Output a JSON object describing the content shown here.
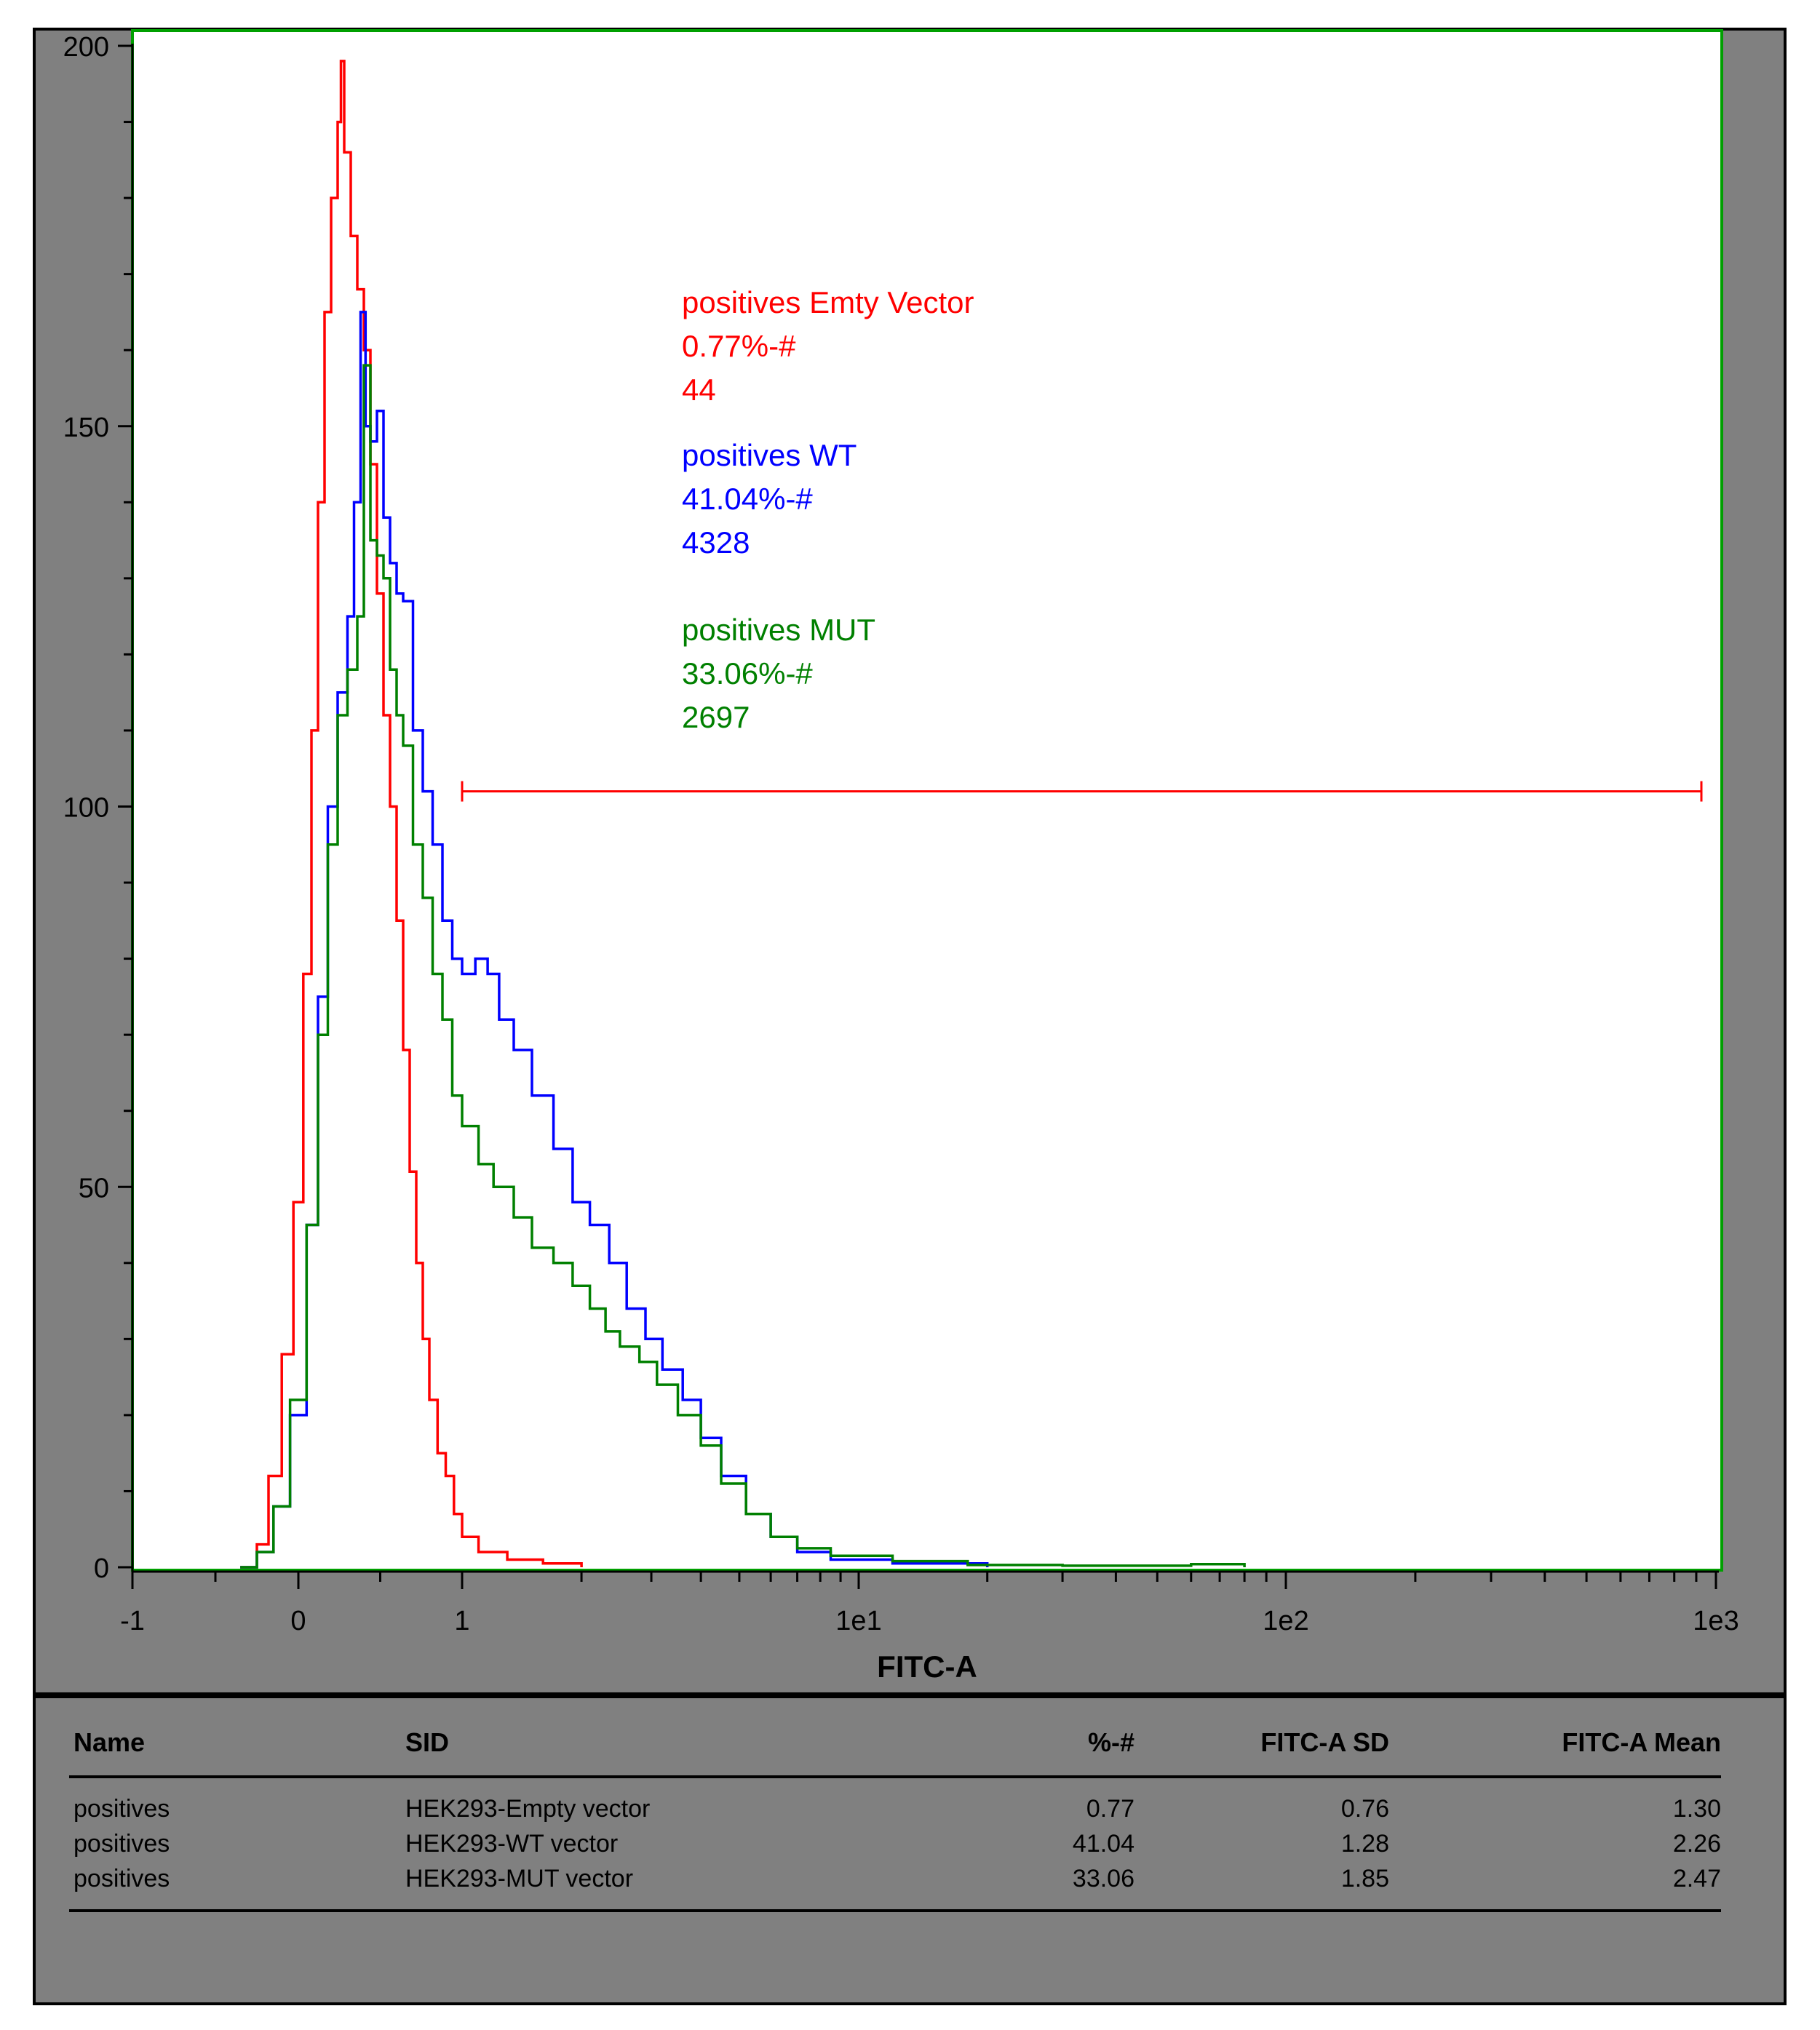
{
  "chart_data": {
    "type": "histogram",
    "title": "",
    "xlabel": "FITC-A",
    "ylabel": "",
    "x_tick_labels": [
      "-1",
      "0",
      "1",
      "1e1",
      "1e2",
      "1e3"
    ],
    "y_ticks": [
      0,
      50,
      100,
      150,
      200
    ],
    "ylim": [
      0,
      200
    ],
    "series": [
      {
        "name": "Empty Vector",
        "color": "#ff0000",
        "points": [
          [
            -0.35,
            0
          ],
          [
            -0.25,
            3
          ],
          [
            -0.18,
            12
          ],
          [
            -0.1,
            28
          ],
          [
            -0.03,
            48
          ],
          [
            0.03,
            78
          ],
          [
            0.08,
            110
          ],
          [
            0.12,
            140
          ],
          [
            0.16,
            165
          ],
          [
            0.2,
            180
          ],
          [
            0.24,
            190
          ],
          [
            0.26,
            198
          ],
          [
            0.28,
            186
          ],
          [
            0.32,
            175
          ],
          [
            0.36,
            168
          ],
          [
            0.4,
            160
          ],
          [
            0.44,
            145
          ],
          [
            0.48,
            128
          ],
          [
            0.52,
            112
          ],
          [
            0.56,
            100
          ],
          [
            0.6,
            85
          ],
          [
            0.64,
            68
          ],
          [
            0.68,
            52
          ],
          [
            0.72,
            40
          ],
          [
            0.76,
            30
          ],
          [
            0.8,
            22
          ],
          [
            0.85,
            15
          ],
          [
            0.9,
            12
          ],
          [
            0.95,
            7
          ],
          [
            1.0,
            4
          ],
          [
            1.1,
            2
          ],
          [
            1.3,
            1
          ],
          [
            1.6,
            0.5
          ],
          [
            2.0,
            0
          ]
        ]
      },
      {
        "name": "WT",
        "color": "#0000ff",
        "points": [
          [
            -0.35,
            0
          ],
          [
            -0.25,
            2
          ],
          [
            -0.15,
            8
          ],
          [
            -0.05,
            20
          ],
          [
            0.05,
            45
          ],
          [
            0.12,
            75
          ],
          [
            0.18,
            100
          ],
          [
            0.24,
            115
          ],
          [
            0.3,
            125
          ],
          [
            0.34,
            140
          ],
          [
            0.38,
            165
          ],
          [
            0.41,
            150
          ],
          [
            0.44,
            148
          ],
          [
            0.48,
            152
          ],
          [
            0.52,
            138
          ],
          [
            0.56,
            132
          ],
          [
            0.6,
            128
          ],
          [
            0.64,
            127
          ],
          [
            0.7,
            110
          ],
          [
            0.76,
            102
          ],
          [
            0.82,
            95
          ],
          [
            0.88,
            85
          ],
          [
            0.94,
            80
          ],
          [
            1.0,
            78
          ],
          [
            1.08,
            80
          ],
          [
            1.16,
            78
          ],
          [
            1.24,
            72
          ],
          [
            1.35,
            68
          ],
          [
            1.5,
            62
          ],
          [
            1.7,
            55
          ],
          [
            1.9,
            48
          ],
          [
            2.1,
            45
          ],
          [
            2.35,
            40
          ],
          [
            2.6,
            34
          ],
          [
            2.9,
            30
          ],
          [
            3.2,
            26
          ],
          [
            3.6,
            22
          ],
          [
            4.0,
            17
          ],
          [
            4.5,
            12
          ],
          [
            5.2,
            7
          ],
          [
            6.0,
            4
          ],
          [
            7.0,
            2
          ],
          [
            8.5,
            1
          ],
          [
            12,
            0.5
          ],
          [
            20,
            0
          ]
        ]
      },
      {
        "name": "MUT",
        "color": "#008000",
        "points": [
          [
            -0.35,
            0
          ],
          [
            -0.25,
            2
          ],
          [
            -0.15,
            8
          ],
          [
            -0.05,
            22
          ],
          [
            0.05,
            45
          ],
          [
            0.12,
            70
          ],
          [
            0.18,
            95
          ],
          [
            0.24,
            112
          ],
          [
            0.3,
            118
          ],
          [
            0.36,
            125
          ],
          [
            0.4,
            158
          ],
          [
            0.44,
            135
          ],
          [
            0.48,
            133
          ],
          [
            0.52,
            130
          ],
          [
            0.56,
            118
          ],
          [
            0.6,
            112
          ],
          [
            0.64,
            108
          ],
          [
            0.7,
            95
          ],
          [
            0.76,
            88
          ],
          [
            0.82,
            78
          ],
          [
            0.88,
            72
          ],
          [
            0.94,
            62
          ],
          [
            1.0,
            58
          ],
          [
            1.1,
            53
          ],
          [
            1.2,
            50
          ],
          [
            1.35,
            46
          ],
          [
            1.5,
            42
          ],
          [
            1.7,
            40
          ],
          [
            1.9,
            37
          ],
          [
            2.1,
            34
          ],
          [
            2.3,
            31
          ],
          [
            2.5,
            29
          ],
          [
            2.8,
            27
          ],
          [
            3.1,
            24
          ],
          [
            3.5,
            20
          ],
          [
            4.0,
            16
          ],
          [
            4.5,
            11
          ],
          [
            5.2,
            7
          ],
          [
            6.0,
            4
          ],
          [
            7.0,
            2.5
          ],
          [
            8.5,
            1.5
          ],
          [
            12,
            0.8
          ],
          [
            18,
            0.3
          ],
          [
            30,
            0.2
          ],
          [
            60,
            0.4
          ],
          [
            80,
            0
          ]
        ]
      }
    ],
    "marker": {
      "from": 1,
      "to": 1000,
      "y": 102,
      "color": "#ff0000"
    },
    "annotations": [
      {
        "color": "#ff0000",
        "lines": [
          "positives Emty Vector",
          "0.77%-#",
          "44"
        ]
      },
      {
        "color": "#0000ff",
        "lines": [
          "positives WT",
          "41.04%-#",
          "4328"
        ]
      },
      {
        "color": "#008000",
        "lines": [
          "positives MUT",
          "33.06%-#",
          "2697"
        ]
      }
    ]
  },
  "stats_table": {
    "headers": [
      "Name",
      "SID",
      "%-#",
      "FITC-A SD",
      "FITC-A Mean"
    ],
    "rows": [
      [
        "positives",
        "HEK293-Empty vector",
        "0.77",
        "0.76",
        "1.30"
      ],
      [
        "positives",
        "HEK293-WT vector",
        "41.04",
        "1.28",
        "2.26"
      ],
      [
        "positives",
        "HEK293-MUT vector",
        "33.06",
        "1.85",
        "2.47"
      ]
    ]
  }
}
